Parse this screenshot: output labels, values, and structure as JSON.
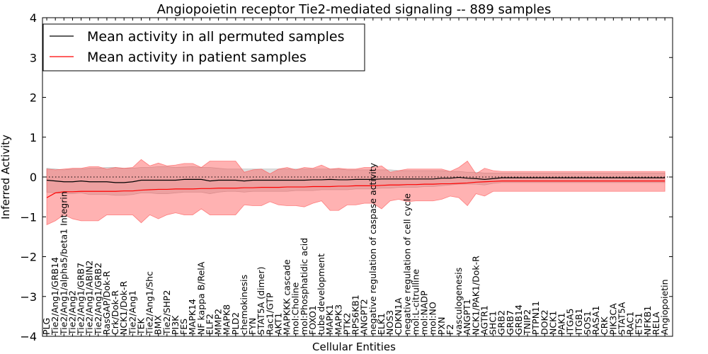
{
  "chart_data": {
    "type": "line",
    "title": "Angiopoietin receptor Tie2-mediated signaling -- 889 samples",
    "xlabel": "Cellular Entities",
    "ylabel": "Inferred Activity",
    "ylim": [
      -4,
      4
    ],
    "yticks": [
      -4,
      -3,
      -2,
      -1,
      0,
      1,
      2,
      3,
      4
    ],
    "reference_line": 0,
    "legend_position": "top-left",
    "categories": [
      "PLG",
      "Tie2/Ang1/GRB14",
      "Tie2/Ang1/alpha5/beta1 Integrin",
      "Tie2/Ang2",
      "Tie2/Ang1/GRB7",
      "Tie2/Ang1/ABIN2",
      "Tie2/Ang1/GRB2",
      "RasGAP/Dok-R",
      "Crk/Dok-R",
      "NCK1/Dok-R",
      "Tie2/Ang1",
      "TEK",
      "Tie2/Ang1/Shc",
      "BMX",
      "Tie2/SHP2",
      "PI3K",
      "FES",
      "MAPK14",
      "NF kappa B/RelA",
      "ELF2",
      "MMP2",
      "MAPK8",
      "PLD2",
      "chemokinesis",
      "FYN",
      "STAT5A (dimer)",
      "Rac1/GTP",
      "AKT1",
      "MAPKKK cascade",
      "mol:Choline",
      "mol:Phosphatidic acid",
      "FOXO1",
      "tube development",
      "MAPK1",
      "MAPK3",
      "PTK2",
      "RPS6KB1",
      "ANGPT2",
      "negative regulation of caspase activity",
      "ELK1",
      "NOS3",
      "CDKN1A",
      "negative regulation of cell cycle",
      "mol:L-citrulline",
      "mol:NADP",
      "mol:NO",
      "PXN",
      "F2",
      "vasculogenesis",
      "ANGPT1",
      "NCK1/PAK1/Dok-R",
      "AGTR1",
      "SHC1",
      "GRB2",
      "GRB7",
      "GRB14",
      "TNIP2",
      "PTPN11",
      "DOK2",
      "NCK1",
      "PAK1",
      "ITGA5",
      "ITGB1",
      "SOS1",
      "RASA1",
      "CRK",
      "PIK3CA",
      "STAT5A",
      "RAC1",
      "ETS1",
      "NFKB1",
      "RELA",
      "Angiopoietin"
    ],
    "series": [
      {
        "name": "Mean activity in all permuted samples",
        "color": "#000000",
        "values": [
          -0.08,
          -0.1,
          -0.12,
          -0.12,
          -0.1,
          -0.12,
          -0.12,
          -0.12,
          -0.14,
          -0.14,
          -0.12,
          -0.08,
          -0.08,
          -0.08,
          -0.08,
          -0.08,
          -0.06,
          -0.06,
          -0.06,
          -0.1,
          -0.08,
          -0.08,
          -0.08,
          -0.1,
          -0.08,
          -0.08,
          -0.08,
          -0.08,
          -0.08,
          -0.08,
          -0.08,
          -0.07,
          -0.07,
          -0.06,
          -0.07,
          -0.07,
          -0.06,
          -0.06,
          -0.06,
          -0.05,
          -0.05,
          -0.05,
          -0.05,
          -0.05,
          -0.05,
          -0.05,
          -0.03,
          -0.03,
          -0.01,
          -0.03,
          -0.04,
          -0.06,
          -0.04,
          -0.02,
          -0.02,
          -0.02,
          -0.02,
          -0.02,
          -0.02,
          -0.02,
          -0.02,
          -0.02,
          -0.02,
          -0.02,
          -0.02,
          -0.02,
          -0.02,
          -0.02,
          -0.02,
          -0.02,
          -0.02,
          -0.02,
          -0.02
        ],
        "band_upper": [
          0.22,
          0.2,
          0.18,
          0.2,
          0.2,
          0.22,
          0.22,
          0.24,
          0.24,
          0.22,
          0.22,
          0.24,
          0.24,
          0.26,
          0.26,
          0.24,
          0.25,
          0.26,
          0.24,
          0.24,
          0.22,
          0.2,
          0.2,
          0.2,
          0.2,
          0.2,
          0.2,
          0.2,
          0.2,
          0.2,
          0.2,
          0.2,
          0.2,
          0.2,
          0.2,
          0.18,
          0.18,
          0.18,
          0.18,
          0.18,
          0.18,
          0.16,
          0.16,
          0.16,
          0.16,
          0.16,
          0.16,
          0.14,
          0.14,
          0.12,
          0.12,
          0.1,
          0.1,
          0.1,
          0.1,
          0.1,
          0.1,
          0.1,
          0.1,
          0.1,
          0.1,
          0.1,
          0.1,
          0.1,
          0.1,
          0.1,
          0.1,
          0.1,
          0.1,
          0.1,
          0.1,
          0.1,
          0.1
        ],
        "band_lower": [
          -0.38,
          -0.4,
          -0.42,
          -0.42,
          -0.4,
          -0.44,
          -0.44,
          -0.44,
          -0.46,
          -0.46,
          -0.44,
          -0.4,
          -0.4,
          -0.42,
          -0.42,
          -0.4,
          -0.38,
          -0.38,
          -0.38,
          -0.42,
          -0.38,
          -0.36,
          -0.36,
          -0.38,
          -0.36,
          -0.36,
          -0.36,
          -0.36,
          -0.36,
          -0.34,
          -0.34,
          -0.34,
          -0.32,
          -0.32,
          -0.32,
          -0.32,
          -0.3,
          -0.3,
          -0.3,
          -0.28,
          -0.28,
          -0.26,
          -0.26,
          -0.26,
          -0.24,
          -0.24,
          -0.22,
          -0.2,
          -0.18,
          -0.18,
          -0.18,
          -0.2,
          -0.16,
          -0.14,
          -0.14,
          -0.14,
          -0.14,
          -0.14,
          -0.14,
          -0.14,
          -0.14,
          -0.14,
          -0.14,
          -0.14,
          -0.14,
          -0.14,
          -0.14,
          -0.14,
          -0.14,
          -0.14,
          -0.14,
          -0.14,
          -0.14
        ]
      },
      {
        "name": "Mean activity in patient samples",
        "color": "#ff0000",
        "values": [
          -0.52,
          -0.4,
          -0.37,
          -0.37,
          -0.36,
          -0.36,
          -0.36,
          -0.36,
          -0.36,
          -0.35,
          -0.35,
          -0.33,
          -0.32,
          -0.31,
          -0.31,
          -0.3,
          -0.3,
          -0.3,
          -0.29,
          -0.29,
          -0.28,
          -0.28,
          -0.28,
          -0.27,
          -0.27,
          -0.26,
          -0.26,
          -0.26,
          -0.25,
          -0.25,
          -0.25,
          -0.24,
          -0.24,
          -0.24,
          -0.23,
          -0.23,
          -0.22,
          -0.22,
          -0.22,
          -0.21,
          -0.2,
          -0.2,
          -0.19,
          -0.19,
          -0.18,
          -0.18,
          -0.17,
          -0.17,
          -0.16,
          -0.15,
          -0.13,
          -0.12,
          -0.11,
          -0.1,
          -0.1,
          -0.1,
          -0.1,
          -0.1,
          -0.1,
          -0.1,
          -0.1,
          -0.1,
          -0.1,
          -0.1,
          -0.1,
          -0.1,
          -0.1,
          -0.1,
          -0.1,
          -0.1,
          -0.1,
          -0.1,
          -0.1
        ],
        "band_upper": [
          0.2,
          0.18,
          0.2,
          0.22,
          0.22,
          0.26,
          0.26,
          0.2,
          0.24,
          0.22,
          0.24,
          0.44,
          0.28,
          0.35,
          0.28,
          0.3,
          0.34,
          0.34,
          0.24,
          0.4,
          0.4,
          0.4,
          0.4,
          0.12,
          0.18,
          0.2,
          0.08,
          0.2,
          0.24,
          0.18,
          0.24,
          0.22,
          0.3,
          0.2,
          0.22,
          0.2,
          0.2,
          0.24,
          0.24,
          0.28,
          0.12,
          0.16,
          0.2,
          0.2,
          0.2,
          0.2,
          0.2,
          0.14,
          0.24,
          0.4,
          0.08,
          0.22,
          0.16,
          0.14,
          0.14,
          0.14,
          0.14,
          0.14,
          0.14,
          0.14,
          0.14,
          0.14,
          0.14,
          0.14,
          0.14,
          0.14,
          0.14,
          0.14,
          0.14,
          0.14,
          0.14,
          0.14,
          0.14
        ],
        "band_lower": [
          -1.2,
          -1.1,
          -0.95,
          -1.05,
          -1.1,
          -1.1,
          -1.1,
          -0.95,
          -0.95,
          -0.95,
          -0.95,
          -1.15,
          -0.95,
          -1.05,
          -0.95,
          -0.9,
          -0.95,
          -0.95,
          -0.8,
          -0.95,
          -0.95,
          -0.95,
          -0.95,
          -0.7,
          -0.72,
          -0.72,
          -0.62,
          -0.7,
          -0.72,
          -0.72,
          -0.75,
          -0.66,
          -0.6,
          -0.84,
          -0.84,
          -0.7,
          -0.7,
          -0.66,
          -0.66,
          -0.8,
          -0.6,
          -0.56,
          -0.62,
          -0.6,
          -0.6,
          -0.6,
          -0.56,
          -0.48,
          -0.52,
          -0.72,
          -0.42,
          -0.48,
          -0.36,
          -0.36,
          -0.36,
          -0.36,
          -0.36,
          -0.36,
          -0.36,
          -0.36,
          -0.36,
          -0.36,
          -0.36,
          -0.36,
          -0.36,
          -0.36,
          -0.36,
          -0.36,
          -0.36,
          -0.36,
          -0.36,
          -0.36,
          -0.36
        ]
      }
    ]
  }
}
